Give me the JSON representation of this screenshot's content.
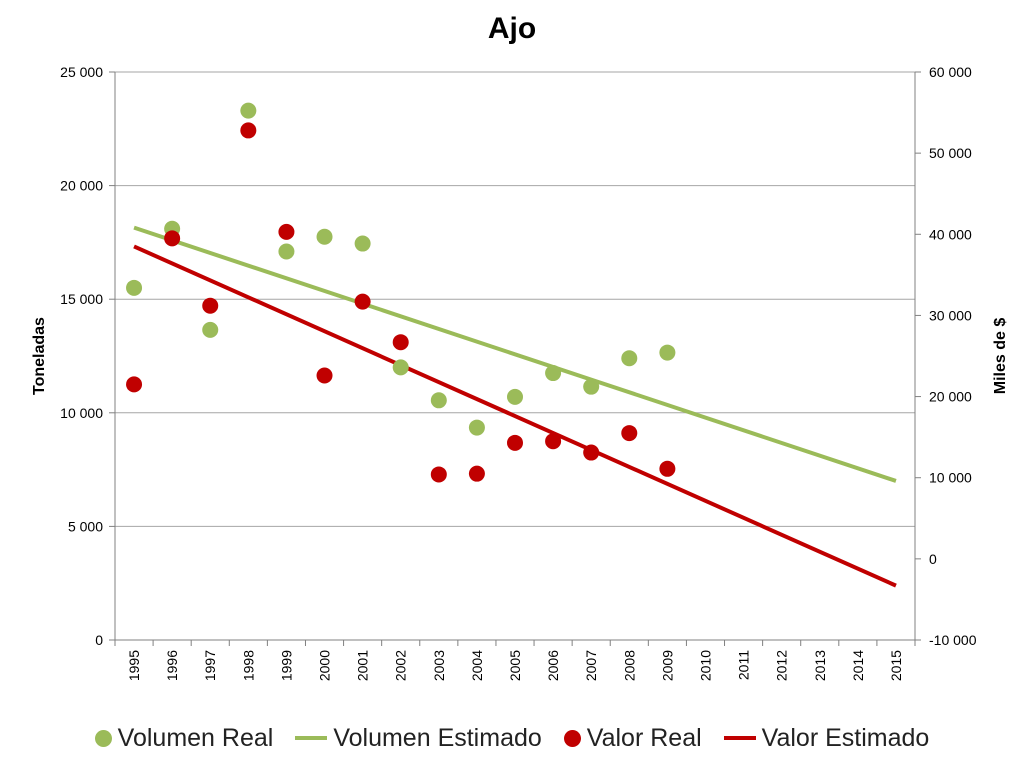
{
  "colors": {
    "volumen": "#9bbb59",
    "valor": "#c00000",
    "grid": "#a6a6a6",
    "axis": "#808080",
    "text": "#000000"
  },
  "chart_data": {
    "type": "scatter",
    "title": "Ajo",
    "ylabel": "Toneladas",
    "y2label": "Miles de $",
    "categories": [
      "1995",
      "1996",
      "1997",
      "1998",
      "1999",
      "2000",
      "2001",
      "2002",
      "2003",
      "2004",
      "2005",
      "2006",
      "2007",
      "2008",
      "2009",
      "2010",
      "2011",
      "2012",
      "2013",
      "2014",
      "2015"
    ],
    "ylim": [
      0,
      25000
    ],
    "y2lim": [
      -10000,
      60000
    ],
    "yticks": [
      "0",
      "5 000",
      "10 000",
      "15 000",
      "20 000",
      "25 000"
    ],
    "y2ticks": [
      "-10 000",
      "0",
      "10 000",
      "20 000",
      "30 000",
      "40 000",
      "50 000",
      "60 000"
    ],
    "grid": true,
    "legend_position": "bottom",
    "series": [
      {
        "name": "Volumen Real",
        "type": "scatter",
        "axis": "left",
        "color": "#9bbb59",
        "x": [
          "1995",
          "1996",
          "1997",
          "1998",
          "1999",
          "2000",
          "2001",
          "2002",
          "2003",
          "2004",
          "2005",
          "2006",
          "2007",
          "2008",
          "2009"
        ],
        "values": [
          15500,
          18100,
          13650,
          23300,
          17100,
          17750,
          17450,
          12000,
          10550,
          9350,
          10700,
          11750,
          11150,
          12400,
          12650
        ]
      },
      {
        "name": "Volumen Estimado",
        "type": "line",
        "axis": "left",
        "color": "#9bbb59",
        "x": [
          "1995",
          "2015"
        ],
        "values": [
          18150,
          7000
        ]
      },
      {
        "name": "Valor Real",
        "type": "scatter",
        "axis": "right",
        "color": "#c00000",
        "x": [
          "1995",
          "1996",
          "1997",
          "1998",
          "1999",
          "2000",
          "2001",
          "2002",
          "2003",
          "2004",
          "2005",
          "2006",
          "2007",
          "2008",
          "2009"
        ],
        "values": [
          21500,
          39500,
          31200,
          52800,
          40300,
          22600,
          31700,
          26700,
          10400,
          10500,
          14300,
          14500,
          13100,
          15500,
          11100
        ]
      },
      {
        "name": "Valor Estimado",
        "type": "line",
        "axis": "right",
        "color": "#c00000",
        "x": [
          "1995",
          "2015"
        ],
        "values": [
          38500,
          -3300
        ]
      }
    ]
  }
}
